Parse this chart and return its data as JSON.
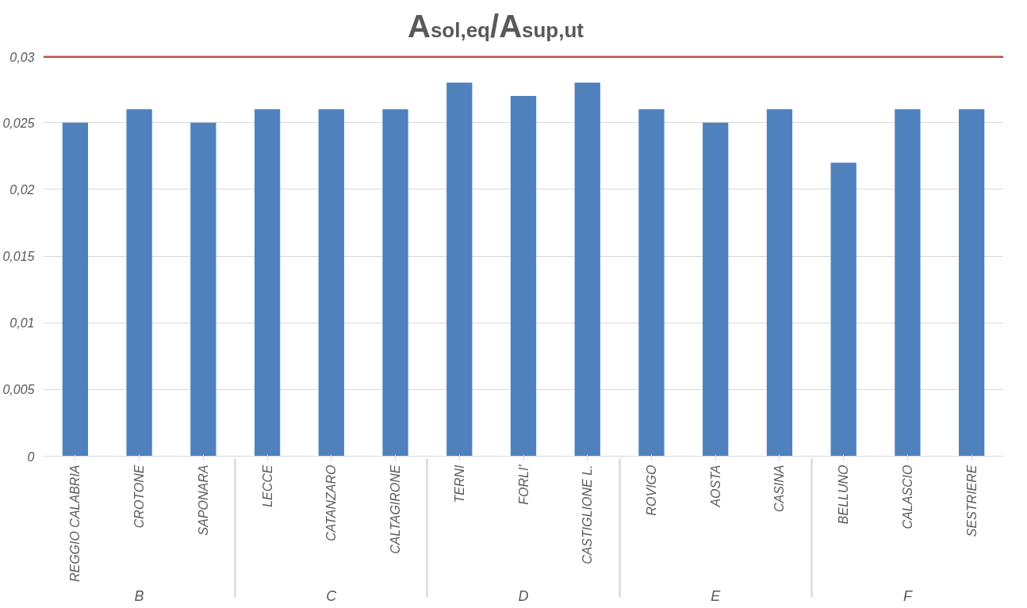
{
  "chart_data": {
    "type": "bar",
    "title": "A$_{sol,eq}$/A$_{sup,ut}$",
    "categories": [
      "REGGIO CALABRIA",
      "CROTONE",
      "SAPONARA",
      "LECCE",
      "CATANZARO",
      "CALTAGIRONE",
      "TERNI",
      "FORLI'",
      "CASTIGLIONE L.",
      "ROVIGO",
      "AOSTA",
      "CASINA",
      "BELLUNO",
      "CALASCIO",
      "SESTRIERE"
    ],
    "annotations": [
      "B",
      "C",
      "D",
      "E",
      "F"
    ],
    "values": [
      0.025,
      0.026,
      0.025,
      0.026,
      0.026,
      0.026,
      0.028,
      0.027,
      0.028,
      0.026,
      0.025,
      0.026,
      0.022,
      0.026,
      0.026
    ],
    "color": "#4f81bd",
    "ylim": [
      0,
      0.03
    ],
    "yticks": [
      0,
      {
        "value": 0.005,
        "label": "0,005"
      },
      {
        "value": 0.01,
        "label": "0,01"
      },
      {
        "value": 0.015,
        "label": "0,015"
      },
      {
        "value": 0.02,
        "label": "0,02"
      },
      {
        "value": 0.025,
        "label": "0,025"
      },
      {
        "value": 0.03,
        "label": "0,03"
      }
    ],
    "ref_lines": [
      {
        "axis": "y",
        "value": 0.03,
        "label": null,
        "color": "#c0504d"
      }
    ],
    "grid": "y"
  }
}
